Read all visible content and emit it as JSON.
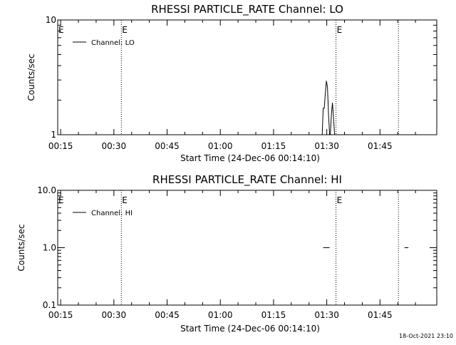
{
  "footer": {
    "timestamp": "18-Oct-2021 23:10"
  },
  "chart_data": [
    {
      "type": "line",
      "title": "RHESSI PARTICLE_RATE Channel: LO",
      "xlabel": "Start Time (24-Dec-06 00:14:10)",
      "ylabel": "Counts/sec",
      "yscale": "log",
      "ylim": [
        1,
        10
      ],
      "ytick_labels": [
        "1",
        "10"
      ],
      "ytick_values": [
        1,
        10
      ],
      "xlim_minutes": [
        14.17,
        121
      ],
      "xtick_labels": [
        "00:15",
        "00:30",
        "00:45",
        "01:00",
        "01:15",
        "01:30",
        "01:45"
      ],
      "xtick_minutes": [
        15,
        30,
        45,
        60,
        75,
        90,
        105
      ],
      "legend": {
        "entries": [
          "Channel: LO"
        ],
        "placement": "top-left"
      },
      "markers": [
        {
          "minute": 32.1,
          "label": "E"
        },
        {
          "minute": 92.6,
          "label": "E"
        },
        {
          "minute": 110.2,
          "label": ""
        }
      ],
      "series": [
        {
          "name": "Channel: LO",
          "points": [
            [
              88.7,
              1.0
            ],
            [
              89.0,
              1.7
            ],
            [
              89.3,
              1.7
            ],
            [
              89.6,
              2.3
            ],
            [
              89.9,
              2.95
            ],
            [
              90.2,
              2.6
            ],
            [
              90.5,
              1.5
            ],
            [
              90.8,
              1.0
            ],
            [
              91.0,
              1.0
            ],
            [
              91.3,
              1.5
            ],
            [
              91.6,
              1.9
            ],
            [
              91.9,
              1.4
            ],
            [
              92.2,
              1.0
            ]
          ]
        }
      ]
    },
    {
      "type": "line",
      "title": "RHESSI PARTICLE_RATE Channel: HI",
      "xlabel": "Start Time (24-Dec-06 00:14:10)",
      "ylabel": "Counts/sec",
      "yscale": "log",
      "ylim": [
        0.1,
        10
      ],
      "ytick_labels": [
        "0.1",
        "1.0",
        "10.0"
      ],
      "ytick_values": [
        0.1,
        1,
        10
      ],
      "xlim_minutes": [
        14.17,
        121
      ],
      "xtick_labels": [
        "00:15",
        "00:30",
        "00:45",
        "01:00",
        "01:15",
        "01:30",
        "01:45"
      ],
      "xtick_minutes": [
        15,
        30,
        45,
        60,
        75,
        90,
        105
      ],
      "legend": {
        "entries": [
          "Channel: HI"
        ],
        "placement": "top-left"
      },
      "markers": [
        {
          "minute": 32.1,
          "label": "E"
        },
        {
          "minute": 92.6,
          "label": "E"
        },
        {
          "minute": 110.2,
          "label": ""
        }
      ],
      "series": [
        {
          "name": "Channel: HI",
          "segments": [
            [
              [
                89.0,
                1.0
              ],
              [
                90.8,
                1.0
              ]
            ],
            [
              [
                111.9,
                1.0
              ],
              [
                113.0,
                1.0
              ]
            ]
          ]
        }
      ]
    }
  ]
}
